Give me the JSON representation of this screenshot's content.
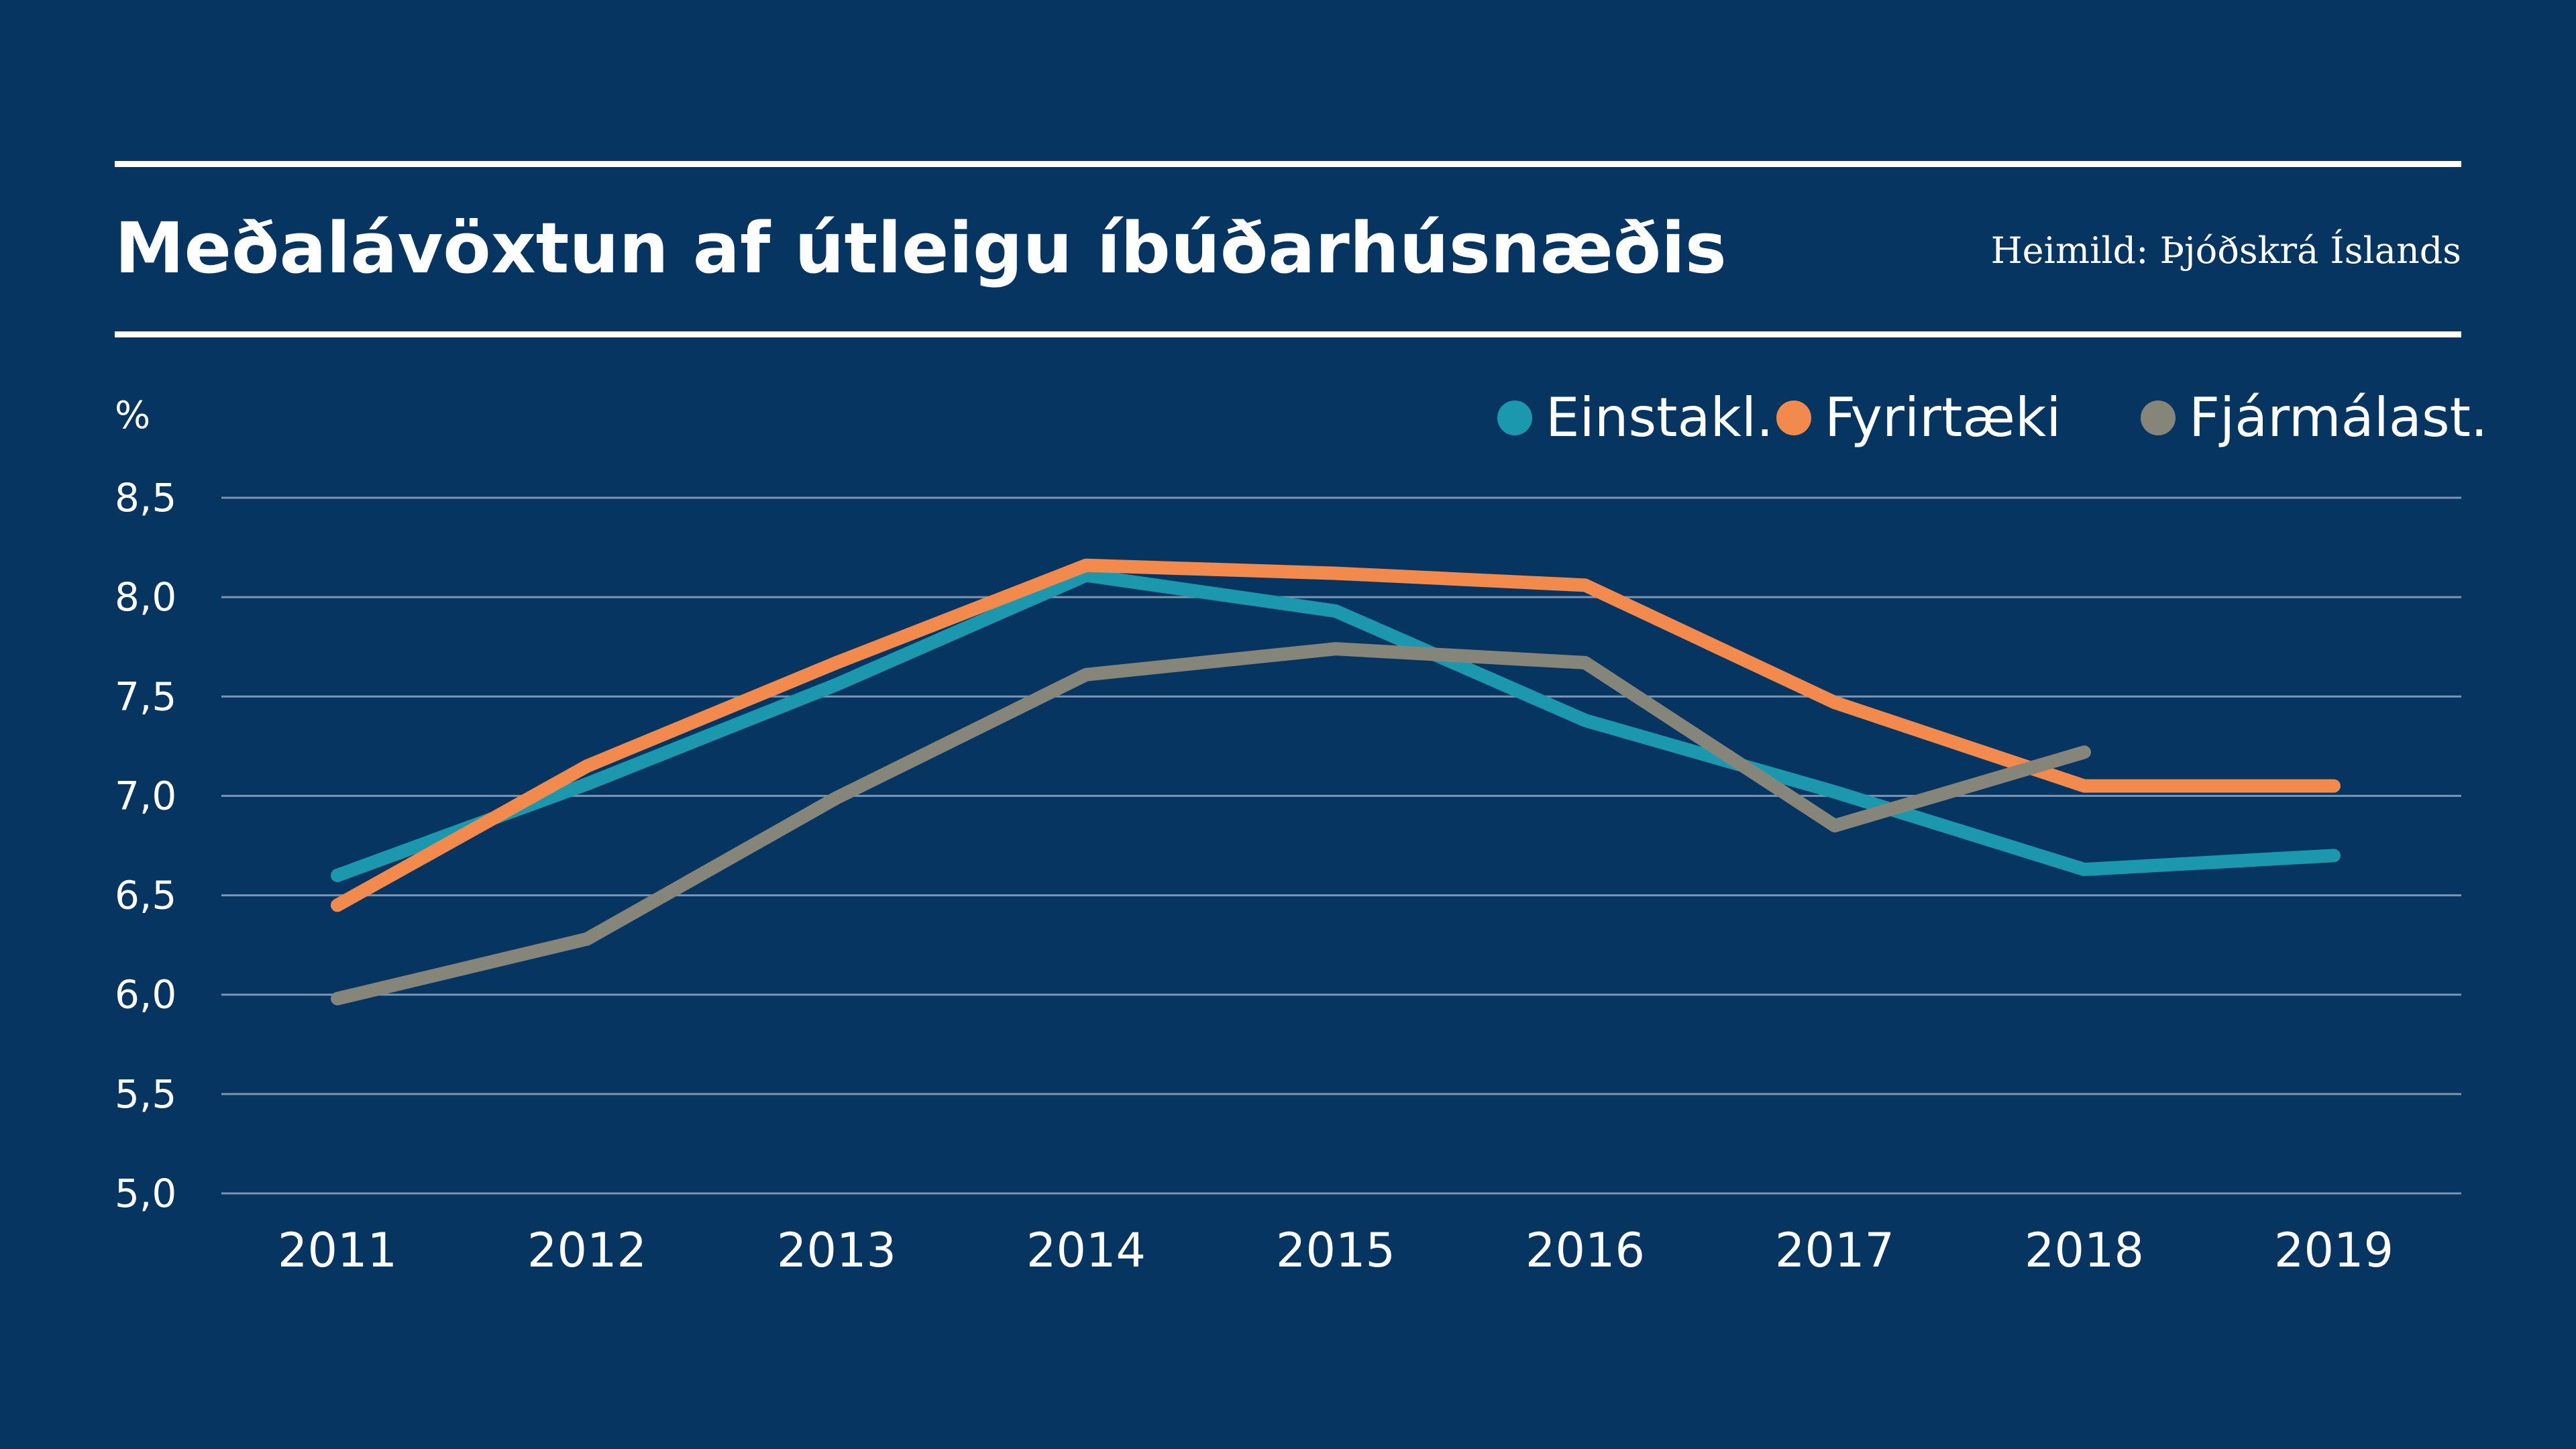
{
  "header": {
    "title": "Meðalávöxtun af útleigu íbúðarhúsnæðis",
    "source": "Heimild: Þjóðskrá Íslands"
  },
  "colors": {
    "background": "#063561",
    "text": "#ffffff",
    "gridline": "#7f95ad",
    "Einstakl.": "#1b98ad",
    "Fyrirtæki": "#f28a4d",
    "Fjármálast.": "#86857a"
  },
  "chart_data": {
    "type": "line",
    "title": "Meðalávöxtun af útleigu íbúðarhúsnæðis",
    "ylabel": "%",
    "xlabel": "",
    "x": [
      "2011",
      "2012",
      "2013",
      "2014",
      "2015",
      "2016",
      "2017",
      "2018",
      "2019"
    ],
    "ylim": [
      5.0,
      8.5
    ],
    "yticks": [
      "5,0",
      "5,5",
      "6,0",
      "6,5",
      "7,0",
      "7,5",
      "8,0",
      "8,5"
    ],
    "grid": true,
    "legend_position": "top-right",
    "series": [
      {
        "name": "Einstakl.",
        "color": "#1b98ad",
        "values": [
          6.6,
          7.06,
          7.56,
          8.11,
          7.93,
          7.38,
          7.02,
          6.63,
          6.7
        ]
      },
      {
        "name": "Fyrirtæki",
        "color": "#f28a4d",
        "values": [
          6.45,
          7.15,
          7.67,
          8.16,
          8.12,
          8.06,
          7.47,
          7.05,
          7.05
        ]
      },
      {
        "name": "Fjármálast.",
        "color": "#86857a",
        "values": [
          5.98,
          6.28,
          6.99,
          7.61,
          7.74,
          7.67,
          6.85,
          7.22,
          null
        ]
      }
    ]
  }
}
